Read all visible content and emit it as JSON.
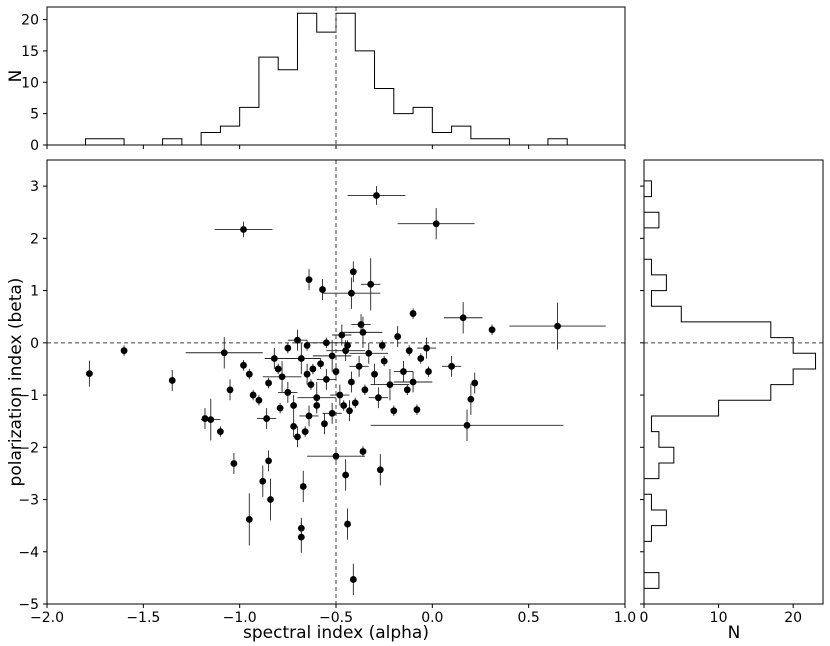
{
  "chart_data": [
    {
      "panel": "top-histogram",
      "type": "histogram",
      "ylabel": "N",
      "xlim": [
        -2.0,
        1.0
      ],
      "ylim": [
        0,
        22
      ],
      "yticks": [
        0,
        5,
        10,
        15,
        20
      ],
      "bin_edges": [
        -1.8,
        -1.7,
        -1.6,
        -1.5,
        -1.4,
        -1.3,
        -1.2,
        -1.1,
        -1.0,
        -0.9,
        -0.8,
        -0.7,
        -0.6,
        -0.5,
        -0.4,
        -0.3,
        -0.2,
        -0.1,
        0.0,
        0.1,
        0.2,
        0.3,
        0.4,
        0.5,
        0.6,
        0.7
      ],
      "counts": [
        1,
        1,
        0,
        0,
        1,
        0,
        2,
        3,
        6,
        14,
        12,
        21,
        18,
        21,
        15,
        9,
        5,
        6,
        2,
        3,
        1,
        1,
        0,
        0,
        1
      ],
      "reference_line_x": -0.5
    },
    {
      "panel": "main-scatter",
      "type": "scatter",
      "xlabel": "spectral index (alpha)",
      "ylabel": "polarization index (beta)",
      "xlim": [
        -2.0,
        1.0
      ],
      "ylim": [
        -5.0,
        3.5
      ],
      "xticks": [
        "−2.0",
        "−1.5",
        "−1.0",
        "−0.5",
        "0.0",
        "0.5",
        "1.0"
      ],
      "yticks": [
        "3",
        "2",
        "1",
        "0",
        "−1",
        "−2",
        "−3",
        "−4",
        "−5"
      ],
      "xtick_values": [
        -2.0,
        -1.5,
        -1.0,
        -0.5,
        0.0,
        0.5,
        1.0
      ],
      "ytick_values": [
        3,
        2,
        1,
        0,
        -1,
        -2,
        -3,
        -4,
        -5
      ],
      "reference_lines": {
        "x": -0.5,
        "y": 0.0
      },
      "points": [
        {
          "x": -0.29,
          "y": 2.82,
          "xerr": 0.15,
          "yerr": 0.18
        },
        {
          "x": 0.02,
          "y": 2.28,
          "xerr": 0.2,
          "yerr": 0.3
        },
        {
          "x": -0.98,
          "y": 2.17,
          "xerr": 0.15,
          "yerr": 0.15
        },
        {
          "x": 0.65,
          "y": 0.32,
          "xerr": 0.25,
          "yerr": 0.45
        },
        {
          "x": 0.16,
          "y": 0.48,
          "xerr": 0.1,
          "yerr": 0.3
        },
        {
          "x": 0.31,
          "y": 0.25,
          "xerr": 0.0,
          "yerr": 0.1
        },
        {
          "x": -0.32,
          "y": 1.12,
          "xerr": 0.05,
          "yerr": 0.5
        },
        {
          "x": -0.41,
          "y": 1.36,
          "xerr": 0.0,
          "yerr": 0.2
        },
        {
          "x": -0.42,
          "y": 0.95,
          "xerr": 0.15,
          "yerr": 0.3
        },
        {
          "x": -0.64,
          "y": 1.21,
          "xerr": 0.0,
          "yerr": 0.2
        },
        {
          "x": -0.57,
          "y": 1.02,
          "xerr": 0.0,
          "yerr": 0.2
        },
        {
          "x": -0.1,
          "y": 0.56,
          "xerr": 0.0,
          "yerr": 0.1
        },
        {
          "x": -1.78,
          "y": -0.59,
          "xerr": 0.0,
          "yerr": 0.25
        },
        {
          "x": -1.6,
          "y": -0.15,
          "xerr": 0.0,
          "yerr": 0.1
        },
        {
          "x": -1.35,
          "y": -0.72,
          "xerr": 0.0,
          "yerr": 0.2
        },
        {
          "x": -1.08,
          "y": -0.19,
          "xerr": 0.2,
          "yerr": 0.3
        },
        {
          "x": -1.05,
          "y": -0.9,
          "xerr": 0.0,
          "yerr": 0.2
        },
        {
          "x": -1.15,
          "y": -1.47,
          "xerr": 0.05,
          "yerr": 0.4
        },
        {
          "x": -1.1,
          "y": -1.7,
          "xerr": 0.0,
          "yerr": 0.1
        },
        {
          "x": -0.98,
          "y": -0.43,
          "xerr": 0.0,
          "yerr": 0.1
        },
        {
          "x": -0.95,
          "y": -0.6,
          "xerr": 0.0,
          "yerr": 0.1
        },
        {
          "x": -0.9,
          "y": -1.1,
          "xerr": 0.0,
          "yerr": 0.1
        },
        {
          "x": -0.85,
          "y": -0.77,
          "xerr": 0.0,
          "yerr": 0.1
        },
        {
          "x": -0.82,
          "y": -0.3,
          "xerr": 0.05,
          "yerr": 0.2
        },
        {
          "x": -0.8,
          "y": -0.5,
          "xerr": 0.0,
          "yerr": 0.1
        },
        {
          "x": -0.78,
          "y": -0.65,
          "xerr": 0.1,
          "yerr": 0.3
        },
        {
          "x": -0.75,
          "y": -0.95,
          "xerr": 0.05,
          "yerr": 0.2
        },
        {
          "x": -0.72,
          "y": -1.2,
          "xerr": 0.0,
          "yerr": 0.2
        },
        {
          "x": -0.7,
          "y": 0.05,
          "xerr": 0.05,
          "yerr": 0.2
        },
        {
          "x": -0.68,
          "y": -0.3,
          "xerr": 0.1,
          "yerr": 0.3
        },
        {
          "x": -0.65,
          "y": -0.6,
          "xerr": 0.0,
          "yerr": 0.2
        },
        {
          "x": -0.63,
          "y": -0.8,
          "xerr": 0.0,
          "yerr": 0.1
        },
        {
          "x": -0.6,
          "y": -1.05,
          "xerr": 0.1,
          "yerr": 0.3
        },
        {
          "x": -0.58,
          "y": -0.4,
          "xerr": 0.0,
          "yerr": 0.1
        },
        {
          "x": -0.55,
          "y": -0.7,
          "xerr": 0.05,
          "yerr": 0.2
        },
        {
          "x": -0.52,
          "y": -0.25,
          "xerr": 0.1,
          "yerr": 0.3
        },
        {
          "x": -0.5,
          "y": -0.55,
          "xerr": 0.0,
          "yerr": 0.1
        },
        {
          "x": -0.48,
          "y": -1.0,
          "xerr": 0.05,
          "yerr": 0.2
        },
        {
          "x": -0.45,
          "y": -0.15,
          "xerr": 0.1,
          "yerr": 0.2
        },
        {
          "x": -0.42,
          "y": -0.75,
          "xerr": 0.0,
          "yerr": 0.2
        },
        {
          "x": -0.4,
          "y": -1.15,
          "xerr": 0.0,
          "yerr": 0.1
        },
        {
          "x": -0.38,
          "y": -0.45,
          "xerr": 0.05,
          "yerr": 0.2
        },
        {
          "x": -0.35,
          "y": -0.9,
          "xerr": 0.0,
          "yerr": 0.1
        },
        {
          "x": -0.33,
          "y": -0.2,
          "xerr": 0.1,
          "yerr": 0.2
        },
        {
          "x": -0.3,
          "y": -0.6,
          "xerr": 0.0,
          "yerr": 0.2
        },
        {
          "x": -0.28,
          "y": -1.05,
          "xerr": 0.05,
          "yerr": 0.2
        },
        {
          "x": -0.25,
          "y": -0.35,
          "xerr": 0.0,
          "yerr": 0.1
        },
        {
          "x": -0.22,
          "y": -0.8,
          "xerr": 0.1,
          "yerr": 0.3
        },
        {
          "x": -0.2,
          "y": -1.3,
          "xerr": 0.0,
          "yerr": 0.1
        },
        {
          "x": -0.18,
          "y": 0.12,
          "xerr": 0.0,
          "yerr": 0.2
        },
        {
          "x": -0.15,
          "y": -0.55,
          "xerr": 0.05,
          "yerr": 0.2
        },
        {
          "x": -0.12,
          "y": -0.15,
          "xerr": 0.0,
          "yerr": 0.1
        },
        {
          "x": -0.1,
          "y": -0.75,
          "xerr": 0.1,
          "yerr": 0.2
        },
        {
          "x": -0.06,
          "y": -0.3,
          "xerr": 0.0,
          "yerr": 0.1
        },
        {
          "x": -0.03,
          "y": -0.1,
          "xerr": 0.05,
          "yerr": 0.2
        },
        {
          "x": 0.1,
          "y": -0.45,
          "xerr": 0.05,
          "yerr": 0.2
        },
        {
          "x": 0.18,
          "y": -1.58,
          "xerr": 0.5,
          "yerr": 0.3
        },
        {
          "x": 0.2,
          "y": -1.08,
          "xerr": 0.0,
          "yerr": 0.3
        },
        {
          "x": 0.22,
          "y": -0.77,
          "xerr": 0.0,
          "yerr": 0.2
        },
        {
          "x": -0.37,
          "y": 0.35,
          "xerr": 0.05,
          "yerr": 0.2
        },
        {
          "x": -0.36,
          "y": 0.2,
          "xerr": 0.1,
          "yerr": 0.3
        },
        {
          "x": -0.47,
          "y": 0.15,
          "xerr": 0.05,
          "yerr": 0.2
        },
        {
          "x": -0.55,
          "y": 0.0,
          "xerr": 0.1,
          "yerr": 0.1
        },
        {
          "x": -0.75,
          "y": -0.1,
          "xerr": 0.0,
          "yerr": 0.1
        },
        {
          "x": -0.86,
          "y": -1.45,
          "xerr": 0.05,
          "yerr": 0.2
        },
        {
          "x": -0.79,
          "y": -1.25,
          "xerr": 0.0,
          "yerr": 0.1
        },
        {
          "x": -0.72,
          "y": -1.6,
          "xerr": 0.0,
          "yerr": 0.2
        },
        {
          "x": -0.7,
          "y": -1.8,
          "xerr": 0.0,
          "yerr": 0.2
        },
        {
          "x": -0.66,
          "y": -1.7,
          "xerr": 0.0,
          "yerr": 0.1
        },
        {
          "x": -0.64,
          "y": -1.4,
          "xerr": 0.05,
          "yerr": 0.2
        },
        {
          "x": -0.6,
          "y": -1.2,
          "xerr": 0.0,
          "yerr": 0.1
        },
        {
          "x": -0.56,
          "y": -1.55,
          "xerr": 0.0,
          "yerr": 0.2
        },
        {
          "x": -0.52,
          "y": -1.35,
          "xerr": 0.05,
          "yerr": 0.2
        },
        {
          "x": -0.46,
          "y": -1.2,
          "xerr": 0.0,
          "yerr": 0.1
        },
        {
          "x": -0.43,
          "y": -1.3,
          "xerr": 0.0,
          "yerr": 0.2
        },
        {
          "x": -0.5,
          "y": -2.17,
          "xerr": 0.15,
          "yerr": 0.1
        },
        {
          "x": -0.36,
          "y": -2.08,
          "xerr": 0.0,
          "yerr": 0.1
        },
        {
          "x": -1.03,
          "y": -2.31,
          "xerr": 0.0,
          "yerr": 0.2
        },
        {
          "x": -0.85,
          "y": -2.26,
          "xerr": 0.0,
          "yerr": 0.2
        },
        {
          "x": -0.88,
          "y": -2.65,
          "xerr": 0.0,
          "yerr": 0.3
        },
        {
          "x": -0.84,
          "y": -3.0,
          "xerr": 0.0,
          "yerr": 0.4
        },
        {
          "x": -0.67,
          "y": -2.75,
          "xerr": 0.0,
          "yerr": 0.3
        },
        {
          "x": -0.45,
          "y": -2.53,
          "xerr": 0.0,
          "yerr": 0.3
        },
        {
          "x": -0.27,
          "y": -2.43,
          "xerr": 0.0,
          "yerr": 0.3
        },
        {
          "x": -0.95,
          "y": -3.38,
          "xerr": 0.0,
          "yerr": 0.5
        },
        {
          "x": -0.68,
          "y": -3.55,
          "xerr": 0.0,
          "yerr": 0.2
        },
        {
          "x": -0.68,
          "y": -3.72,
          "xerr": 0.0,
          "yerr": 0.3
        },
        {
          "x": -0.44,
          "y": -3.47,
          "xerr": 0.0,
          "yerr": 0.3
        },
        {
          "x": -0.41,
          "y": -4.53,
          "xerr": 0.0,
          "yerr": 0.3
        },
        {
          "x": -1.18,
          "y": -1.45,
          "xerr": 0.0,
          "yerr": 0.2
        },
        {
          "x": -0.93,
          "y": -1.0,
          "xerr": 0.0,
          "yerr": 0.1
        },
        {
          "x": -0.65,
          "y": -0.05,
          "xerr": 0.0,
          "yerr": 0.1
        },
        {
          "x": -0.62,
          "y": -0.5,
          "xerr": 0.0,
          "yerr": 0.1
        },
        {
          "x": -0.44,
          "y": -0.05,
          "xerr": 0.0,
          "yerr": 0.1
        },
        {
          "x": -0.26,
          "y": -0.05,
          "xerr": 0.0,
          "yerr": 0.1
        },
        {
          "x": -0.13,
          "y": -0.9,
          "xerr": 0.0,
          "yerr": 0.1
        },
        {
          "x": -0.08,
          "y": -1.28,
          "xerr": 0.0,
          "yerr": 0.1
        },
        {
          "x": -0.02,
          "y": -0.55,
          "xerr": 0.0,
          "yerr": 0.1
        }
      ]
    },
    {
      "panel": "right-histogram",
      "type": "histogram",
      "orientation": "horizontal",
      "xlabel": "N",
      "xlim": [
        0,
        24
      ],
      "xticks": [
        0,
        10,
        20
      ],
      "bin_edges": [
        -4.7,
        -4.4,
        -4.1,
        -3.8,
        -3.5,
        -3.2,
        -2.9,
        -2.6,
        -2.3,
        -2.0,
        -1.7,
        -1.4,
        -1.1,
        -0.8,
        -0.5,
        -0.2,
        0.1,
        0.4,
        0.7,
        1.0,
        1.3,
        1.6,
        1.9,
        2.2,
        2.5,
        2.8,
        3.1
      ],
      "counts": [
        2,
        0,
        0,
        1,
        3,
        1,
        0,
        2,
        4,
        2,
        1,
        10,
        17,
        20,
        23,
        20,
        17,
        5,
        1,
        3,
        1,
        0,
        0,
        2,
        0,
        1
      ],
      "reference_line_y": 0.0
    }
  ]
}
